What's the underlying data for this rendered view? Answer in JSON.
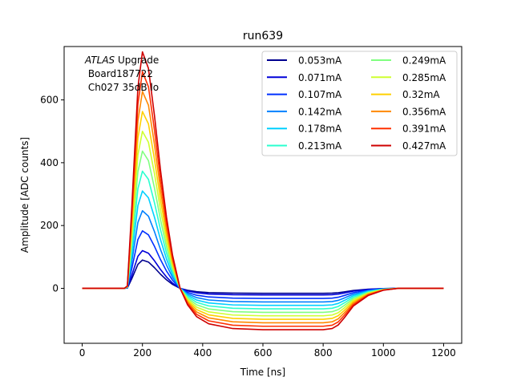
{
  "chart_data": {
    "type": "line",
    "title": "run639",
    "xlabel": "Time [ns]",
    "ylabel": "Amplitude [ADC counts]",
    "xlim": [
      -60,
      1260
    ],
    "ylim": [
      -175,
      770
    ],
    "x_ticks": [
      0,
      200,
      400,
      600,
      800,
      1000,
      1200
    ],
    "y_ticks": [
      0,
      200,
      400,
      600
    ],
    "grid": false,
    "legend_position": "top-right",
    "legend_columns": 2,
    "annotation": {
      "experiment_italic": "ATLAS",
      "experiment_rest": " Upgrade",
      "line2": " Board187722",
      "line3": " Ch027 35dB lo"
    },
    "shape": {
      "time_ns": [
        0,
        100,
        140,
        150,
        165,
        185,
        200,
        220,
        240,
        260,
        280,
        300,
        325,
        350,
        380,
        420,
        500,
        600,
        700,
        800,
        830,
        850,
        870,
        900,
        950,
        1000,
        1050,
        1100,
        1200
      ],
      "relative_amplitude": [
        0,
        0,
        0,
        0.01,
        0.35,
        0.85,
        1.0,
        0.93,
        0.73,
        0.5,
        0.3,
        0.14,
        0.0,
        -0.07,
        -0.12,
        -0.15,
        -0.17,
        -0.175,
        -0.175,
        -0.175,
        -0.17,
        -0.155,
        -0.125,
        -0.075,
        -0.03,
        -0.008,
        0,
        0,
        0
      ]
    },
    "series": [
      {
        "name": "0.053mA",
        "peak": 90,
        "color": "#00008f"
      },
      {
        "name": "0.071mA",
        "peak": 120,
        "color": "#0000d9"
      },
      {
        "name": "0.107mA",
        "peak": 183,
        "color": "#0030ff"
      },
      {
        "name": "0.142mA",
        "peak": 247,
        "color": "#0080ff"
      },
      {
        "name": "0.178mA",
        "peak": 310,
        "color": "#00d0ff"
      },
      {
        "name": "0.213mA",
        "peak": 373,
        "color": "#2affcf"
      },
      {
        "name": "0.249mA",
        "peak": 437,
        "color": "#80ff80"
      },
      {
        "name": "0.285mA",
        "peak": 500,
        "color": "#cfff30"
      },
      {
        "name": "0.32mA",
        "peak": 563,
        "color": "#ffd000"
      },
      {
        "name": "0.356mA",
        "peak": 627,
        "color": "#ff8800"
      },
      {
        "name": "0.391mA",
        "peak": 690,
        "color": "#ff3000"
      },
      {
        "name": "0.427mA",
        "peak": 753,
        "color": "#cf0000"
      }
    ]
  }
}
